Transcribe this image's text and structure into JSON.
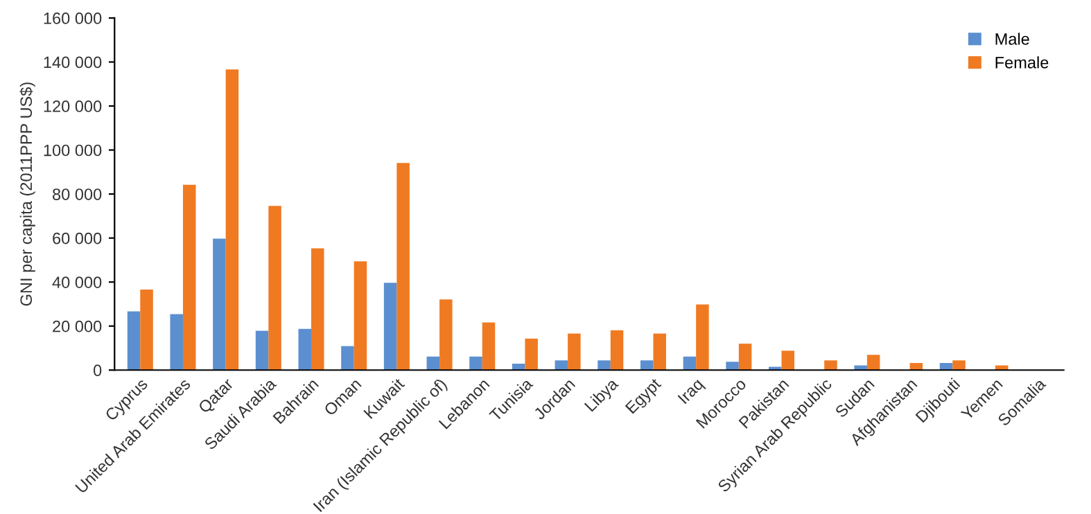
{
  "chart_data": {
    "type": "bar",
    "ylabel": "GNI per capita (2011PPP US$)",
    "categories": [
      "Cyprus",
      "United Arab Emirates",
      "Qatar",
      "Saudi Arabia",
      "Bahrain",
      "Oman",
      "Kuwait",
      "Iran (Islamic Republic of)",
      "Lebanon",
      "Tunisia",
      "Jordan",
      "Libya",
      "Egypt",
      "Iraq",
      "Morocco",
      "Pakistan",
      "Syrian Arab Republic",
      "Sudan",
      "Afghanistan",
      "Djibouti",
      "Yemen",
      "Somalia"
    ],
    "series": [
      {
        "name": "Male",
        "color": "#5b8fd0",
        "values": [
          26700,
          25400,
          59700,
          17900,
          18700,
          10900,
          39700,
          6100,
          6100,
          2900,
          4400,
          4400,
          4400,
          6100,
          3800,
          1500,
          null,
          2100,
          null,
          3200,
          null,
          null
        ]
      },
      {
        "name": "Female",
        "color": "#f07a22",
        "values": [
          36600,
          84200,
          136600,
          74600,
          55300,
          49400,
          94100,
          32100,
          21600,
          14300,
          16600,
          18100,
          16600,
          29800,
          12000,
          8800,
          4400,
          6900,
          3200,
          4400,
          2100,
          null
        ]
      }
    ],
    "ylim": [
      0,
      160000
    ],
    "yticks": [
      {
        "value": 0,
        "label": "0"
      },
      {
        "value": 20000,
        "label": "20 000"
      },
      {
        "value": 40000,
        "label": "40 000"
      },
      {
        "value": 60000,
        "label": "60 000"
      },
      {
        "value": 80000,
        "label": "80 000"
      },
      {
        "value": 100000,
        "label": "100 000"
      },
      {
        "value": 120000,
        "label": "120 000"
      },
      {
        "value": 140000,
        "label": "140 000"
      },
      {
        "value": 160000,
        "label": "160 000"
      }
    ],
    "grid": false,
    "legend": "top right"
  }
}
